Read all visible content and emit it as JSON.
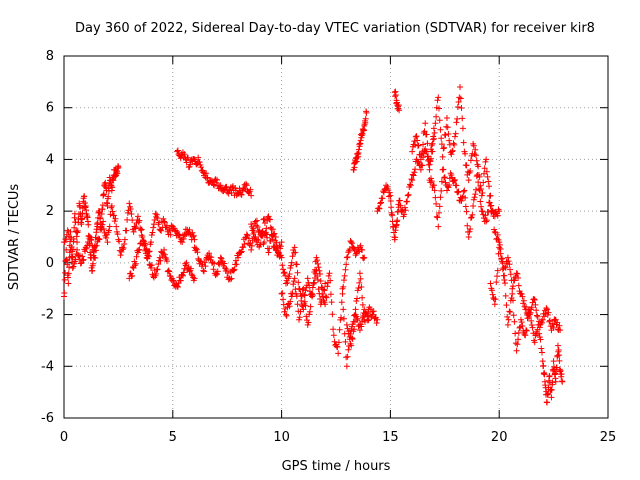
{
  "chart_data": {
    "type": "scatter",
    "title": "Day 360 of 2022, Sidereal Day-to-day VTEC variation (SDTVAR) for receiver kir8",
    "xlabel": "GPS time / hours",
    "ylabel": "SDTVAR / TECUs",
    "xlim": [
      0,
      25
    ],
    "ylim": [
      -6,
      8
    ],
    "xticks": [
      0,
      5,
      10,
      15,
      20,
      25
    ],
    "yticks": [
      -6,
      -4,
      -2,
      0,
      2,
      4,
      6,
      8
    ],
    "grid": true,
    "marker": "+",
    "color": "#ff0000",
    "series": [
      {
        "name": "SDTVAR",
        "tracks": [
          {
            "x": [
              0.0,
              0.1,
              0.2,
              0.3,
              0.4,
              0.5,
              0.6,
              0.7,
              0.8,
              0.9,
              1.0,
              1.1,
              1.2,
              1.3,
              1.4,
              1.5,
              1.6,
              1.7,
              1.8,
              1.9,
              2.0,
              2.1,
              2.2,
              2.3,
              2.4,
              2.5
            ],
            "y": [
              -1.3,
              0.5,
              -0.8,
              1.2,
              0.2,
              1.9,
              0.8,
              2.3,
              1.5,
              2.5,
              2.2,
              1.6,
              0.4,
              -0.3,
              0.6,
              1.3,
              2.0,
              1.4,
              2.6,
              3.1,
              2.2,
              3.3,
              2.8,
              3.6,
              3.4,
              3.7
            ]
          },
          {
            "x": [
              0.0,
              0.2,
              0.4,
              0.6,
              0.8,
              1.0,
              1.2,
              1.4,
              1.6,
              1.8,
              2.0,
              2.2,
              2.4,
              2.6,
              2.8,
              3.0,
              3.2,
              3.4,
              3.6,
              3.8,
              4.0,
              4.2,
              4.4,
              4.6,
              4.8,
              5.0,
              5.2,
              5.4,
              5.6,
              5.8,
              6.0
            ],
            "y": [
              0.8,
              1.2,
              -0.2,
              0.5,
              0.0,
              0.6,
              1.0,
              0.2,
              0.9,
              1.6,
              0.8,
              2.2,
              1.4,
              0.3,
              0.9,
              2.3,
              1.2,
              1.8,
              1.0,
              0.2,
              0.8,
              1.9,
              1.3,
              1.6,
              1.1,
              1.4,
              1.2,
              0.9,
              1.3,
              1.1,
              0.9
            ]
          },
          {
            "x": [
              3.0,
              3.2,
              3.4,
              3.6,
              3.8,
              4.0,
              4.2,
              4.4,
              4.6,
              4.8,
              5.0,
              5.2,
              5.4,
              5.6,
              5.8,
              6.0
            ],
            "y": [
              -0.6,
              -0.2,
              0.4,
              1.0,
              0.5,
              -0.2,
              -0.5,
              0.2,
              0.5,
              -0.3,
              -0.7,
              -0.9,
              -0.5,
              -0.1,
              -0.3,
              -0.6
            ]
          },
          {
            "x": [
              5.2,
              5.4,
              5.6,
              5.8,
              6.0,
              6.2,
              6.4,
              6.6,
              6.8,
              7.0,
              7.2,
              7.4,
              7.6,
              7.8,
              8.0,
              8.2,
              8.4,
              8.6
            ],
            "y": [
              4.3,
              4.2,
              4.0,
              3.8,
              4.0,
              3.9,
              3.5,
              3.3,
              3.1,
              3.1,
              3.0,
              2.9,
              2.8,
              2.8,
              2.7,
              2.8,
              3.0,
              2.6
            ]
          },
          {
            "x": [
              6.0,
              6.2,
              6.4,
              6.6,
              6.8,
              7.0,
              7.2,
              7.4,
              7.6,
              7.8,
              8.0,
              8.2,
              8.4,
              8.6,
              8.8,
              9.0,
              9.2,
              9.4,
              9.6,
              9.8,
              10.0
            ],
            "y": [
              0.6,
              0.1,
              -0.3,
              0.3,
              0.0,
              -0.4,
              0.2,
              -0.2,
              -0.6,
              -0.3,
              0.2,
              0.6,
              1.1,
              0.5,
              1.6,
              1.2,
              0.8,
              1.8,
              0.9,
              0.3,
              0.8
            ]
          },
          {
            "x": [
              8.6,
              8.8,
              9.0,
              9.2,
              9.4,
              9.6,
              9.8,
              10.0,
              10.2,
              10.4,
              10.6,
              10.8,
              11.0,
              11.2,
              11.4,
              11.6,
              11.8,
              12.0
            ],
            "y": [
              1.5,
              1.0,
              0.7,
              1.7,
              0.4,
              1.3,
              0.6,
              0.2,
              -0.8,
              -0.2,
              0.6,
              -1.0,
              -1.8,
              -0.6,
              -1.3,
              -0.3,
              -1.6,
              -0.8
            ]
          },
          {
            "x": [
              10.0,
              10.2,
              10.4,
              10.6,
              10.8,
              11.0,
              11.2,
              11.4,
              11.6,
              11.8,
              12.0,
              12.2,
              12.4,
              12.6,
              12.8,
              13.0,
              13.2,
              13.4,
              13.6,
              13.8,
              14.0,
              14.2,
              14.4
            ],
            "y": [
              -1.2,
              -2.0,
              -1.5,
              -0.6,
              -2.2,
              -1.0,
              -2.4,
              -1.2,
              0.2,
              -0.7,
              -1.6,
              -0.4,
              -2.8,
              -3.5,
              -1.2,
              -4.0,
              -2.6,
              -1.8,
              -0.4,
              -2.2,
              -1.8,
              -2.0,
              -2.2
            ]
          },
          {
            "x": [
              12.8,
              13.0,
              13.2,
              13.4,
              13.6,
              13.8
            ],
            "y": [
              -1.0,
              0.2,
              0.8,
              0.3,
              0.6,
              0.2
            ]
          },
          {
            "x": [
              13.0,
              13.2,
              13.4,
              13.6,
              13.8,
              14.0
            ],
            "y": [
              -2.4,
              -3.2,
              -2.0,
              -2.6,
              -1.8,
              -2.2
            ]
          },
          {
            "x": [
              13.3,
              13.4,
              13.5,
              13.6,
              13.7,
              13.8,
              13.9
            ],
            "y": [
              3.6,
              3.9,
              4.2,
              4.6,
              5.0,
              5.3,
              5.8
            ]
          },
          {
            "x": [
              14.4,
              14.6,
              14.8,
              15.0,
              15.1,
              15.2,
              15.3,
              15.4,
              15.6,
              15.8,
              16.0,
              16.2,
              16.4,
              16.6,
              16.8,
              17.0
            ],
            "y": [
              2.0,
              2.5,
              3.0,
              2.6,
              1.6,
              0.9,
              1.6,
              2.4,
              1.8,
              2.6,
              3.2,
              4.0,
              3.6,
              4.4,
              3.8,
              5.2
            ]
          },
          {
            "x": [
              15.2,
              15.3,
              15.4
            ],
            "y": [
              6.6,
              6.2,
              5.9
            ]
          },
          {
            "x": [
              16.0,
              16.2,
              16.4,
              16.6,
              16.8,
              17.0,
              17.2,
              17.4,
              17.6,
              17.8,
              18.0,
              18.2,
              18.4,
              18.6,
              18.8,
              19.0,
              19.2,
              19.4,
              19.6,
              19.8,
              20.0
            ],
            "y": [
              4.3,
              4.9,
              4.0,
              5.4,
              3.6,
              4.8,
              6.4,
              4.1,
              5.6,
              4.2,
              5.0,
              6.8,
              4.3,
              3.2,
              4.6,
              3.8,
              2.6,
              4.0,
              2.2,
              1.8,
              2.0
            ]
          },
          {
            "x": [
              16.8,
              17.0,
              17.2,
              17.4,
              17.6,
              17.8,
              18.0,
              18.2,
              18.4,
              18.6,
              18.8,
              19.0,
              19.2,
              19.4,
              19.6,
              19.8,
              20.0,
              20.2,
              20.4,
              20.6,
              20.8,
              21.0,
              21.2,
              21.4,
              21.6,
              21.8,
              22.0,
              22.2,
              22.4,
              22.6,
              22.8
            ],
            "y": [
              3.2,
              3.0,
              1.4,
              3.6,
              2.8,
              3.4,
              3.0,
              2.4,
              2.8,
              1.0,
              2.2,
              3.4,
              2.0,
              1.6,
              2.6,
              1.2,
              0.8,
              -0.5,
              0.2,
              -1.0,
              -0.4,
              -1.2,
              -1.8,
              -2.0,
              -1.4,
              -2.4,
              -2.2,
              -1.8,
              -2.6,
              -2.2,
              -2.6
            ]
          },
          {
            "x": [
              19.6,
              19.8,
              20.0,
              20.2,
              20.4,
              20.6,
              20.8,
              21.0,
              21.2,
              21.4,
              21.6,
              21.8,
              22.0,
              22.1,
              22.2,
              22.3,
              22.4,
              22.5,
              22.6,
              22.7,
              22.8,
              22.9
            ],
            "y": [
              -0.8,
              -1.6,
              0.6,
              -0.2,
              -2.4,
              -1.2,
              -3.4,
              -2.2,
              -2.8,
              -1.8,
              -3.0,
              -2.4,
              -3.8,
              -4.6,
              -5.4,
              -4.4,
              -5.2,
              -3.8,
              -4.6,
              -3.2,
              -4.2,
              -4.6
            ]
          }
        ]
      }
    ]
  }
}
